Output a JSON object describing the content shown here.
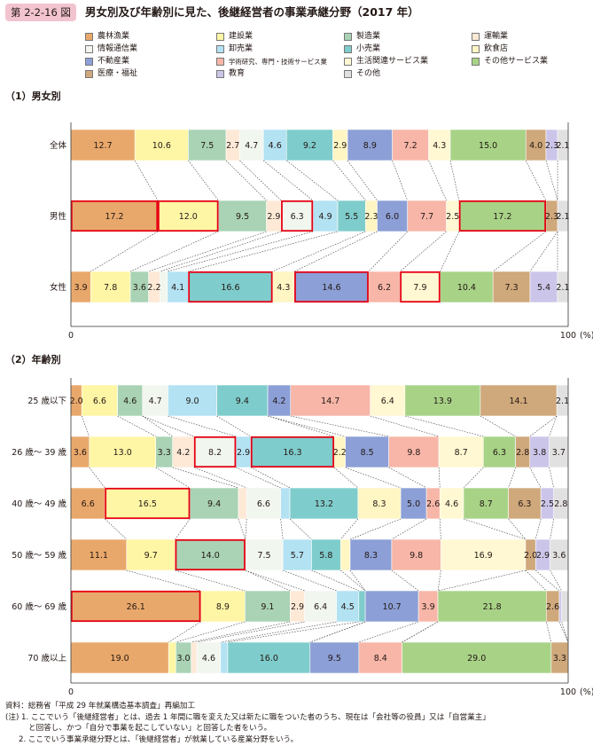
{
  "header": {
    "fig_label": "第 2-2-16 図",
    "title": "男女別及び年齢別に見た、後継経営者の事業承継分野（2017 年）"
  },
  "legend": [
    {
      "name": "農林漁業",
      "color": "#e9a86b"
    },
    {
      "name": "建設業",
      "color": "#fff6a5"
    },
    {
      "name": "製造業",
      "color": "#a9d3b4"
    },
    {
      "name": "運輸業",
      "color": "#fde9d6"
    },
    {
      "name": "情報通信業",
      "color": "#f1f6ee"
    },
    {
      "name": "卸売業",
      "color": "#b3e2f2"
    },
    {
      "name": "小売業",
      "color": "#7fcccc"
    },
    {
      "name": "飲食店",
      "color": "#fff6c4"
    },
    {
      "name": "不動産業",
      "color": "#8c9fd6"
    },
    {
      "name": "学術研究、専門・技術サービス業",
      "color": "#f7b6a8"
    },
    {
      "name": "生活関連サービス業",
      "color": "#fff8d2"
    },
    {
      "name": "その他サービス業",
      "color": "#a8d387"
    },
    {
      "name": "医療・福祉",
      "color": "#cfa87b"
    },
    {
      "name": "教育",
      "color": "#cbc6e9"
    },
    {
      "name": "その他",
      "color": "#e1e1e1"
    }
  ],
  "chart_data": [
    {
      "type": "bar",
      "stacked": "100%",
      "orientation": "horizontal",
      "title": "（1）男女別",
      "categories": [
        "全体",
        "男性",
        "女性"
      ],
      "series_names": [
        "農林漁業",
        "建設業",
        "製造業",
        "運輸業",
        "情報通信業",
        "卸売業",
        "小売業",
        "飲食店",
        "不動産業",
        "学術研究、専門・技術サービス業",
        "生活関連サービス業",
        "その他サービス業",
        "医療・福祉",
        "教育",
        "その他"
      ],
      "values": [
        [
          12.7,
          10.6,
          7.5,
          2.7,
          4.7,
          4.6,
          9.2,
          2.9,
          8.9,
          7.2,
          4.3,
          15.0,
          4.0,
          2.3,
          2.1
        ],
        [
          17.2,
          12.0,
          9.5,
          2.9,
          6.3,
          4.9,
          5.5,
          2.3,
          6.0,
          7.7,
          2.5,
          17.2,
          2.3,
          0.0,
          2.1
        ],
        [
          3.9,
          7.8,
          3.6,
          2.2,
          1.5,
          4.1,
          16.6,
          4.3,
          14.6,
          6.2,
          7.9,
          10.4,
          7.3,
          5.4,
          2.1
        ]
      ],
      "highlighted": [
        [],
        [
          0,
          1,
          4,
          11
        ],
        [
          6,
          8,
          10
        ]
      ],
      "axis": {
        "min": "0",
        "max": "100",
        "unit": "(%)"
      }
    },
    {
      "type": "bar",
      "stacked": "100%",
      "orientation": "horizontal",
      "title": "（2）年齢別",
      "categories": [
        "25 歳以下",
        "26 歳～ 39 歳",
        "40 歳～ 49 歳",
        "50 歳～ 59 歳",
        "60 歳～ 69 歳",
        "70 歳以上"
      ],
      "series_names": [
        "農林漁業",
        "建設業",
        "製造業",
        "運輸業",
        "情報通信業",
        "卸売業",
        "小売業",
        "飲食店",
        "不動産業",
        "学術研究、専門・技術サービス業",
        "生活関連サービス業",
        "その他サービス業",
        "医療・福祉",
        "教育",
        "その他"
      ],
      "values": [
        [
          2.0,
          6.6,
          4.6,
          0.0,
          4.7,
          9.0,
          9.4,
          0.0,
          4.2,
          14.7,
          6.4,
          13.9,
          14.1,
          0.0,
          2.1
        ],
        [
          3.6,
          13.0,
          3.3,
          4.2,
          8.2,
          2.9,
          16.3,
          2.2,
          8.5,
          9.8,
          8.7,
          6.3,
          2.8,
          3.8,
          3.7
        ],
        [
          6.6,
          16.5,
          9.4,
          1.6,
          6.6,
          1.8,
          13.2,
          8.3,
          5.0,
          2.6,
          4.6,
          8.7,
          6.3,
          2.5,
          2.8
        ],
        [
          11.1,
          9.7,
          14.0,
          0.0,
          7.5,
          5.7,
          5.8,
          1.9,
          8.3,
          9.8,
          16.9,
          0.0,
          2.0,
          2.9,
          3.6
        ],
        [
          26.1,
          8.9,
          9.1,
          2.9,
          6.4,
          4.5,
          1.3,
          0.0,
          10.7,
          3.9,
          0.0,
          21.8,
          2.6,
          0.5,
          1.3
        ],
        [
          19.0,
          1.4,
          3.0,
          1.1,
          4.6,
          1.4,
          16.0,
          0.0,
          9.5,
          8.4,
          0.0,
          29.0,
          3.3,
          0.0,
          0.0
        ]
      ],
      "highlighted": [
        [],
        [
          4,
          6
        ],
        [
          1
        ],
        [
          2
        ],
        [
          0
        ],
        []
      ],
      "axis": {
        "min": "0",
        "max": "100",
        "unit": "(%)"
      }
    }
  ],
  "notes": {
    "source": "資料：総務省「平成 29 年就業構造基本調査」再編加工",
    "note1a": "(注) 1. ここでいう「後継経営者」とは、過去 1 年間に職を変えた又は新たに職をついた者のうち、現在は「会社等の役員」又は「自営業主」",
    "note1b": "と回答し、かつ「自分で事業を起こしていない」と回答した者をいう。",
    "note2": "2. ここでいう事業承継分野とは、「後継経営者」が就業している産業分野をいう。"
  }
}
